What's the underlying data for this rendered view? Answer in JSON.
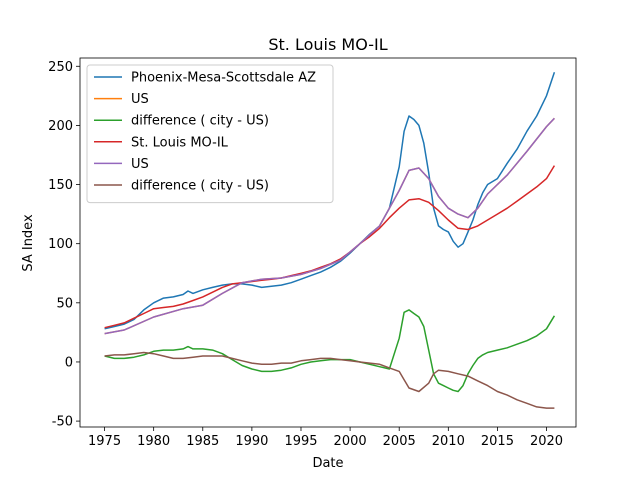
{
  "chart_data": {
    "type": "line",
    "title": "St. Louis MO-IL",
    "xlabel": "Date",
    "ylabel": "SA Index",
    "xlim": [
      1972.5,
      2023
    ],
    "ylim": [
      -55,
      257
    ],
    "xticks": [
      1975,
      1980,
      1985,
      1990,
      1995,
      2000,
      2005,
      2010,
      2015,
      2020
    ],
    "yticks": [
      -50,
      0,
      50,
      100,
      150,
      200,
      250
    ],
    "grid": false,
    "legend_position": "top-left",
    "series": [
      {
        "name": "Phoenix-Mesa-Scottsdale AZ",
        "color": "#1f77b4",
        "x": [
          1975,
          1976,
          1977,
          1978,
          1979,
          1980,
          1981,
          1982,
          1983,
          1983.5,
          1984,
          1985,
          1986,
          1987,
          1988,
          1989,
          1990,
          1991,
          1992,
          1993,
          1994,
          1995,
          1996,
          1997,
          1998,
          1999,
          2000,
          2001,
          2002,
          2003,
          2004,
          2005,
          2005.5,
          2006,
          2006.5,
          2007,
          2007.5,
          2008,
          2008.5,
          2009,
          2009.5,
          2010,
          2010.5,
          2011,
          2011.5,
          2012,
          2012.5,
          2013,
          2013.5,
          2014,
          2015,
          2016,
          2017,
          2018,
          2019,
          2020,
          2020.8
        ],
        "values": [
          28,
          30,
          32,
          36,
          44,
          50,
          54,
          55,
          57,
          60,
          58,
          61,
          63,
          65,
          66,
          66,
          65,
          63,
          64,
          65,
          67,
          70,
          73,
          76,
          80,
          85,
          92,
          100,
          108,
          115,
          130,
          165,
          195,
          208,
          205,
          200,
          185,
          160,
          130,
          115,
          112,
          110,
          102,
          97,
          100,
          110,
          120,
          133,
          143,
          150,
          155,
          168,
          180,
          195,
          208,
          225,
          245
        ]
      },
      {
        "name": "US",
        "color": "#ff7f0e",
        "x": [
          1975,
          1977,
          1980,
          1983,
          1985,
          1987,
          1989,
          1991,
          1993,
          1995,
          1997,
          1999,
          2001,
          2003,
          2005,
          2006,
          2007,
          2008,
          2009,
          2010,
          2011,
          2012,
          2013,
          2014,
          2016,
          2018,
          2020,
          2020.8
        ],
        "values": [
          24,
          27,
          38,
          45,
          48,
          58,
          67,
          70,
          71,
          74,
          79,
          86,
          100,
          115,
          145,
          162,
          164,
          155,
          140,
          130,
          125,
          122,
          130,
          142,
          158,
          178,
          199,
          206
        ]
      },
      {
        "name": "difference ( city - US)",
        "color": "#2ca02c",
        "x": [
          1975,
          1976,
          1977,
          1978,
          1979,
          1980,
          1981,
          1982,
          1983,
          1983.5,
          1984,
          1985,
          1986,
          1987,
          1988,
          1989,
          1990,
          1991,
          1992,
          1993,
          1994,
          1995,
          1996,
          1997,
          1998,
          1999,
          2000,
          2001,
          2002,
          2003,
          2004,
          2005,
          2005.5,
          2006,
          2006.5,
          2007,
          2007.5,
          2008,
          2008.5,
          2009,
          2009.5,
          2010,
          2010.5,
          2011,
          2011.5,
          2012,
          2012.5,
          2013,
          2013.5,
          2014,
          2015,
          2016,
          2017,
          2018,
          2019,
          2020,
          2020.8
        ],
        "values": [
          5,
          3,
          3,
          4,
          6,
          9,
          10,
          10,
          11,
          13,
          11,
          11,
          10,
          7,
          2,
          -3,
          -6,
          -8,
          -8,
          -7,
          -5,
          -2,
          0,
          1,
          2,
          2,
          2,
          0,
          -2,
          -4,
          -6,
          20,
          42,
          44,
          41,
          38,
          30,
          10,
          -10,
          -18,
          -20,
          -22,
          -24,
          -25,
          -20,
          -10,
          -3,
          3,
          6,
          8,
          10,
          12,
          15,
          18,
          22,
          28,
          39
        ]
      },
      {
        "name": "St. Louis MO-IL",
        "color": "#d62728",
        "x": [
          1975,
          1976,
          1977,
          1978,
          1979,
          1980,
          1981,
          1982,
          1983,
          1984,
          1985,
          1986,
          1987,
          1988,
          1989,
          1990,
          1991,
          1992,
          1993,
          1994,
          1995,
          1996,
          1997,
          1998,
          1999,
          2000,
          2001,
          2002,
          2003,
          2004,
          2005,
          2006,
          2007,
          2008,
          2009,
          2010,
          2011,
          2012,
          2013,
          2014,
          2015,
          2016,
          2017,
          2018,
          2019,
          2020,
          2020.8
        ],
        "values": [
          29,
          31,
          33,
          37,
          41,
          45,
          46,
          47,
          49,
          52,
          55,
          59,
          63,
          66,
          67,
          68,
          69,
          70,
          71,
          73,
          75,
          77,
          80,
          83,
          87,
          93,
          100,
          106,
          113,
          122,
          130,
          137,
          138,
          135,
          128,
          120,
          113,
          112,
          115,
          120,
          125,
          130,
          136,
          142,
          148,
          155,
          166
        ]
      },
      {
        "name": "US",
        "color": "#9467bd",
        "x": [
          1975,
          1977,
          1980,
          1983,
          1985,
          1987,
          1989,
          1991,
          1993,
          1995,
          1997,
          1999,
          2001,
          2003,
          2005,
          2006,
          2007,
          2008,
          2009,
          2010,
          2011,
          2012,
          2013,
          2014,
          2016,
          2018,
          2020,
          2020.8
        ],
        "values": [
          24,
          27,
          38,
          45,
          48,
          58,
          67,
          70,
          71,
          74,
          79,
          86,
          100,
          115,
          145,
          162,
          164,
          155,
          140,
          130,
          125,
          122,
          130,
          142,
          158,
          178,
          199,
          206
        ]
      },
      {
        "name": "difference ( city - US)",
        "color": "#8c564b",
        "x": [
          1975,
          1976,
          1977,
          1978,
          1979,
          1980,
          1981,
          1982,
          1983,
          1984,
          1985,
          1986,
          1987,
          1988,
          1989,
          1990,
          1991,
          1992,
          1993,
          1994,
          1995,
          1996,
          1997,
          1998,
          1999,
          2000,
          2001,
          2002,
          2003,
          2004,
          2005,
          2005.5,
          2006,
          2007,
          2008,
          2008.5,
          2009,
          2010,
          2011,
          2012,
          2013,
          2014,
          2015,
          2016,
          2017,
          2018,
          2019,
          2020,
          2020.8
        ],
        "values": [
          5,
          6,
          6,
          7,
          8,
          7,
          5,
          3,
          3,
          4,
          5,
          5,
          5,
          3,
          1,
          -1,
          -2,
          -2,
          -1,
          -1,
          1,
          2,
          3,
          3,
          2,
          1,
          0,
          -1,
          -2,
          -5,
          -8,
          -15,
          -22,
          -25,
          -18,
          -10,
          -7,
          -8,
          -10,
          -12,
          -16,
          -20,
          -25,
          -28,
          -32,
          -35,
          -38,
          -39,
          -39
        ]
      }
    ]
  }
}
